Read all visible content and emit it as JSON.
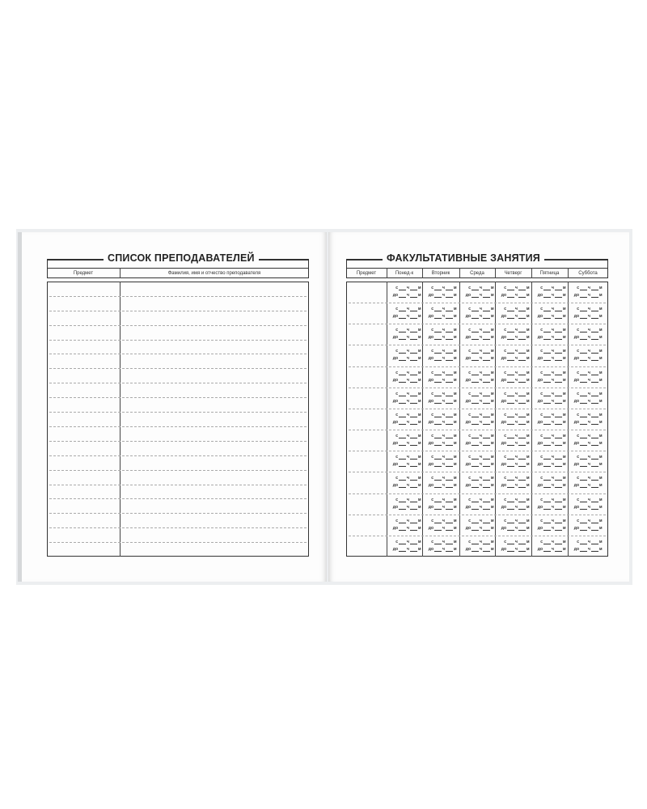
{
  "left_page": {
    "title": "СПИСОК ПРЕПОДАВАТЕЛЕЙ",
    "columns": [
      "Предмет",
      "Фамилия, имя и отчество преподавателя"
    ],
    "line_count": 19
  },
  "right_page": {
    "title": "ФАКУЛЬТАТИВНЫЕ ЗАНЯТИЯ",
    "columns": [
      "Предмет",
      "Понед-к",
      "Вторник",
      "Среда",
      "Четверг",
      "Пятница",
      "Суббота"
    ],
    "slot_count": 13,
    "slot_labels": {
      "from": "с",
      "to": "до",
      "hours": "ч",
      "minutes": "м"
    }
  }
}
